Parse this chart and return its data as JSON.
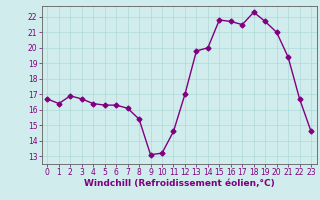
{
  "x": [
    0,
    1,
    2,
    3,
    4,
    5,
    6,
    7,
    8,
    9,
    10,
    11,
    12,
    13,
    14,
    15,
    16,
    17,
    18,
    19,
    20,
    21,
    22,
    23
  ],
  "y": [
    16.7,
    16.4,
    16.9,
    16.7,
    16.4,
    16.3,
    16.3,
    16.1,
    15.4,
    13.1,
    13.2,
    14.6,
    17.0,
    19.8,
    20.0,
    21.8,
    21.7,
    21.5,
    22.3,
    21.7,
    21.0,
    19.4,
    16.7,
    14.6
  ],
  "line_color": "#800080",
  "marker": "D",
  "markersize": 2.5,
  "linewidth": 1.0,
  "xlabel": "Windchill (Refroidissement éolien,°C)",
  "xlabel_fontsize": 6.5,
  "xlim": [
    -0.5,
    23.5
  ],
  "ylim": [
    12.5,
    22.7
  ],
  "yticks": [
    13,
    14,
    15,
    16,
    17,
    18,
    19,
    20,
    21,
    22
  ],
  "xticks": [
    0,
    1,
    2,
    3,
    4,
    5,
    6,
    7,
    8,
    9,
    10,
    11,
    12,
    13,
    14,
    15,
    16,
    17,
    18,
    19,
    20,
    21,
    22,
    23
  ],
  "grid_color": "#b0d8d8",
  "bg_color": "#d0ecec",
  "tick_color": "#800080",
  "tick_fontsize": 5.5,
  "spine_color": "#606060"
}
